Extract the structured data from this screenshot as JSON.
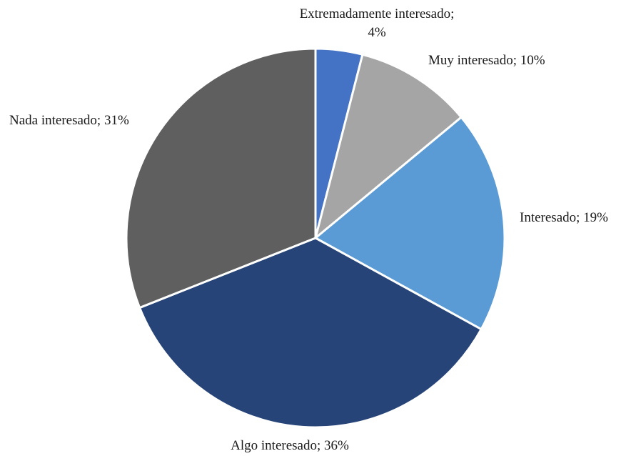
{
  "chart_data": {
    "type": "pie",
    "title": "",
    "slices": [
      {
        "label": "Extremadamente interesado;",
        "value_label": "4%",
        "value": 4,
        "color": "#4472C4"
      },
      {
        "label": "Muy interesado; 10%",
        "value": 10,
        "color": "#A5A5A5"
      },
      {
        "label": "Interesado; 19%",
        "value": 19,
        "color": "#5B9BD5"
      },
      {
        "label": "Algo interesado; 36%",
        "value": 36,
        "color": "#264478"
      },
      {
        "label": "Nada interesado; 31%",
        "value": 31,
        "color": "#5F5F5F"
      }
    ],
    "start_angle": "12 o'clock",
    "direction": "clockwise",
    "legend": "none"
  }
}
